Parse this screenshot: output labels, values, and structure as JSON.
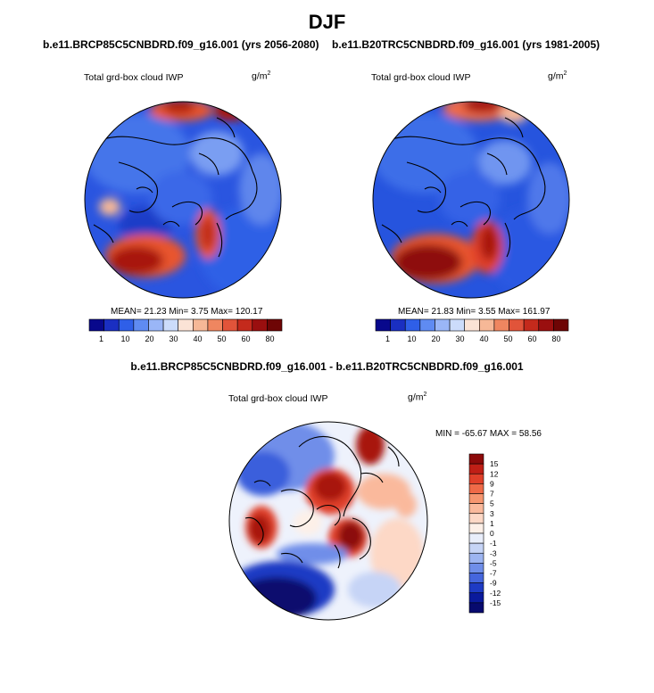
{
  "main_title": "DJF",
  "panels": [
    {
      "case_title": "b.e11.BRCP85C5CNBDRD.f09_g16.001 (yrs 2056-2080)",
      "label": "Total grd-box cloud IWP",
      "units": "g/m",
      "units_exp": "2",
      "stats": "MEAN=  21.23  Min=   3.75  Max= 120.17"
    },
    {
      "case_title": "b.e11.B20TRC5CNBDRD.f09_g16.001 (yrs 1981-2005)",
      "label": "Total grd-box cloud IWP",
      "units": "g/m",
      "units_exp": "2",
      "stats": "MEAN=  21.83  Min=   3.55  Max= 161.97"
    }
  ],
  "colorbar_top": {
    "labels": [
      "1",
      "10",
      "20",
      "30",
      "40",
      "50",
      "60",
      "80"
    ],
    "colors": [
      "#08088c",
      "#1a2fc2",
      "#2f5fe8",
      "#5f8bf2",
      "#9ab6f7",
      "#ccdcfb",
      "#fbe3d6",
      "#f6b897",
      "#ef8660",
      "#e1543a",
      "#c42a1c",
      "#9a0f0f",
      "#6e0505"
    ]
  },
  "difference": {
    "title": "b.e11.BRCP85C5CNBDRD.f09_g16.001 - b.e11.B20TRC5CNBDRD.f09_g16.001",
    "label": "Total grd-box cloud IWP",
    "units": "g/m",
    "units_exp": "2",
    "minmax": "MIN = -65.67 MAX =  58.56"
  },
  "colorbar_diff": {
    "labels": [
      "15",
      "12",
      "9",
      "7",
      "5",
      "3",
      "1",
      "0",
      "-1",
      "-3",
      "-5",
      "-7",
      "-9",
      "-12",
      "-15"
    ],
    "colors": [
      "#8c0a0a",
      "#c01f16",
      "#e0402a",
      "#ef6a48",
      "#f69670",
      "#fab99c",
      "#fdd8c6",
      "#fdf0e8",
      "#e9eefb",
      "#c6d4f6",
      "#9db5f1",
      "#6f8ee9",
      "#4566dd",
      "#1e3bc4",
      "#0a1a9c",
      "#070a6e"
    ]
  }
}
